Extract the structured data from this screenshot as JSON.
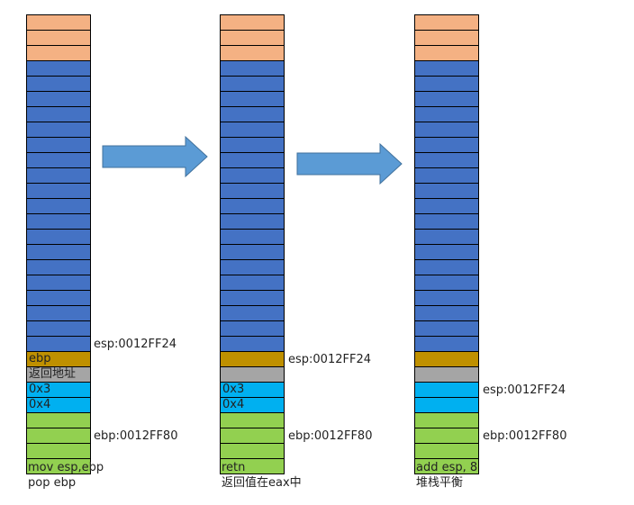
{
  "colors": {
    "orange": "#f4b183",
    "blue": "#4472c4",
    "gold": "#bf9000",
    "gray": "#a5a5a5",
    "cyan": "#00b0f0",
    "green": "#92d050",
    "arrow": "#5b9bd5"
  },
  "stacks": [
    {
      "labels": {
        "ebp": "ebp",
        "ret": "返回地址",
        "arg1": "0x3",
        "arg2": "0x4"
      },
      "esp_label": "esp:0012FF24",
      "ebp_label": "ebp:0012FF80",
      "caption": [
        "mov esp,ebp",
        "pop ebp"
      ]
    },
    {
      "labels": {
        "ebp": "",
        "ret": "",
        "arg1": "0x3",
        "arg2": "0x4"
      },
      "esp_label": "esp:0012FF24",
      "ebp_label": "ebp:0012FF80",
      "caption": [
        "retn",
        "返回值在eax中"
      ]
    },
    {
      "labels": {
        "ebp": "",
        "ret": "",
        "arg1": "",
        "arg2": ""
      },
      "esp_label": "esp:0012FF24",
      "ebp_label": "ebp:0012FF80",
      "caption": [
        "add esp, 8",
        "堆栈平衡"
      ]
    }
  ]
}
